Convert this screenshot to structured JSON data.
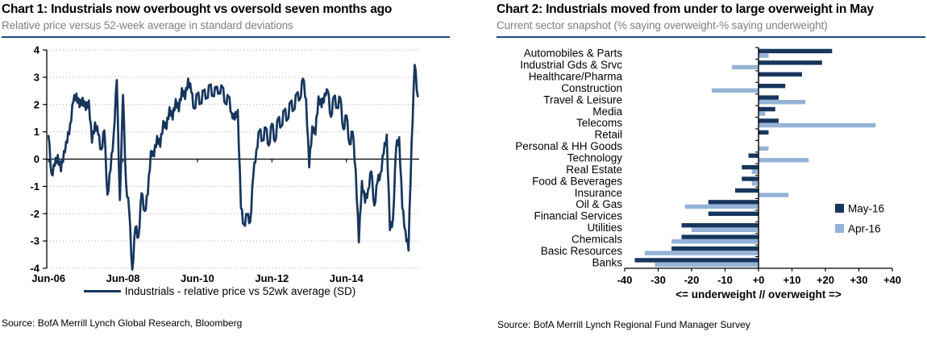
{
  "chart1": {
    "title": "Chart 1: Industrials now overbought vs oversold seven months ago",
    "subtitle": "Relative price versus 52-week average in standard deviations",
    "legend_label": "Industrials - relative price vs 52wk average (SD)",
    "source": "Source: BofA Merrill Lynch Global Research, Bloomberg"
  },
  "chart2": {
    "title": "Chart 2: Industrials moved from under to large overweight in May",
    "subtitle": "Current sector snapshot (% saying overweight-% saying underweight)",
    "source": "Source: BofA Merrill Lynch Regional Fund Manager Survey"
  },
  "colors": {
    "navy": "#17365D",
    "light_blue": "#95B3D7",
    "rule_blue": "#1F497D",
    "subtitle_gray": "#7f7f7f",
    "gridline_gray": "#a6a6a6",
    "axis_black": "#000000"
  },
  "chart_data": [
    {
      "type": "line",
      "title": "Chart 1: Industrials now overbought vs oversold seven months ago",
      "ylabel": "standard deviations",
      "ylim": [
        -4,
        4
      ],
      "y_ticks": [
        4,
        3,
        2,
        1,
        0,
        -1,
        -2,
        -3,
        -4
      ],
      "xlim": [
        2006.37,
        2016.37
      ],
      "x_tick_labels": [
        "Jun-06",
        "Jun-08",
        "Jun-10",
        "Jun-12",
        "Jun-14"
      ],
      "x_tick_positions": [
        2006.4167,
        2008.4167,
        2010.4167,
        2012.4167,
        2014.4167
      ],
      "grid": "dotted horizontal at each integer, solid zero line",
      "legend_position": "bottom center",
      "series": [
        {
          "name": "Industrials - relative price vs 52wk average (SD)",
          "color": "#17365D",
          "x_start": 2006.4167,
          "x_step": 0.083333,
          "y": [
            0.85,
            -0.55,
            -0.25,
            0.15,
            -0.45,
            0.3,
            0.6,
            1.3,
            2.1,
            2.4,
            1.9,
            2.25,
            1.8,
            2.15,
            0.6,
            1.35,
            0.9,
            0.35,
            1.05,
            -1.3,
            -0.4,
            0.9,
            2.9,
            -1.5,
            2.35,
            -0.9,
            -1.9,
            -4.05,
            -2.5,
            -2.85,
            -1.25,
            -1.9,
            -1.3,
            0.3,
            0.1,
            0.85,
            0.45,
            1.4,
            1.1,
            1.9,
            1.45,
            2.2,
            1.75,
            2.6,
            2.2,
            2.95,
            2.45,
            1.85,
            2.4,
            2.05,
            2.5,
            2.25,
            2.7,
            2.35,
            2.6,
            2.45,
            2.65,
            2.05,
            2.3,
            1.7,
            1.45,
            1.8,
            -1.8,
            -2.4,
            -2.05,
            -2.3,
            -0.6,
            0.35,
            1.05,
            0.7,
            1.15,
            0.5,
            1.3,
            0.65,
            1.5,
            1.2,
            1.8,
            1.45,
            2.1,
            1.8,
            2.4,
            2.2,
            2.95,
            2.2,
            -0.3,
            1.2,
            0.9,
            2.3,
            1.9,
            2.4,
            2.5,
            1.55,
            2.3,
            1.9,
            2.25,
            1.1,
            1.6,
            0.55,
            1.0,
            -0.4,
            -3.05,
            -0.8,
            -1.6,
            -1.1,
            -0.45,
            -1.7,
            -0.85,
            -0.5,
            0.2,
            0.9,
            -2.6,
            -2.2,
            0.4,
            0.8,
            -1.8,
            -2.6,
            -3.35,
            0.6,
            3.45,
            2.3
          ]
        }
      ]
    },
    {
      "type": "bar",
      "orientation": "horizontal",
      "title": "Chart 2: Industrials moved from under to large overweight in May",
      "xlabel": "<= underweight  //  overweight =>",
      "xlim": [
        -40,
        40
      ],
      "x_ticks": [
        -40,
        -30,
        -20,
        -10,
        0,
        10,
        20,
        30,
        40
      ],
      "x_tick_labels": [
        "-40",
        "-30",
        "-20",
        "-10",
        "+0",
        "+10",
        "+20",
        "+30",
        "+40"
      ],
      "legend_position": "right middle",
      "categories": [
        "Automobiles & Parts",
        "Industrial Gds & Srvc",
        "Healthcare/Pharma",
        "Construction",
        "Travel & Leisure",
        "Media",
        "Telecoms",
        "Retail",
        "Personal & HH Goods",
        "Technology",
        "Real Estate",
        "Food & Beverages",
        "Insurance",
        "Oil & Gas",
        "Financial Services",
        "Utilities",
        "Chemicals",
        "Basic Resources",
        "Banks"
      ],
      "series": [
        {
          "name": "May-16",
          "color": "#17365D",
          "values": [
            22,
            19,
            13,
            8,
            6,
            5,
            6,
            3,
            0,
            -3,
            -5,
            -5,
            -7,
            -15,
            -15,
            -23,
            -23,
            -26,
            -37
          ]
        },
        {
          "name": "Apr-16",
          "color": "#95B3D7",
          "values": [
            3,
            -8,
            0,
            -14,
            14,
            2,
            35,
            0,
            3,
            15,
            -2,
            -2,
            9,
            -22,
            0,
            -20,
            -26,
            -34,
            -31
          ]
        }
      ]
    }
  ]
}
